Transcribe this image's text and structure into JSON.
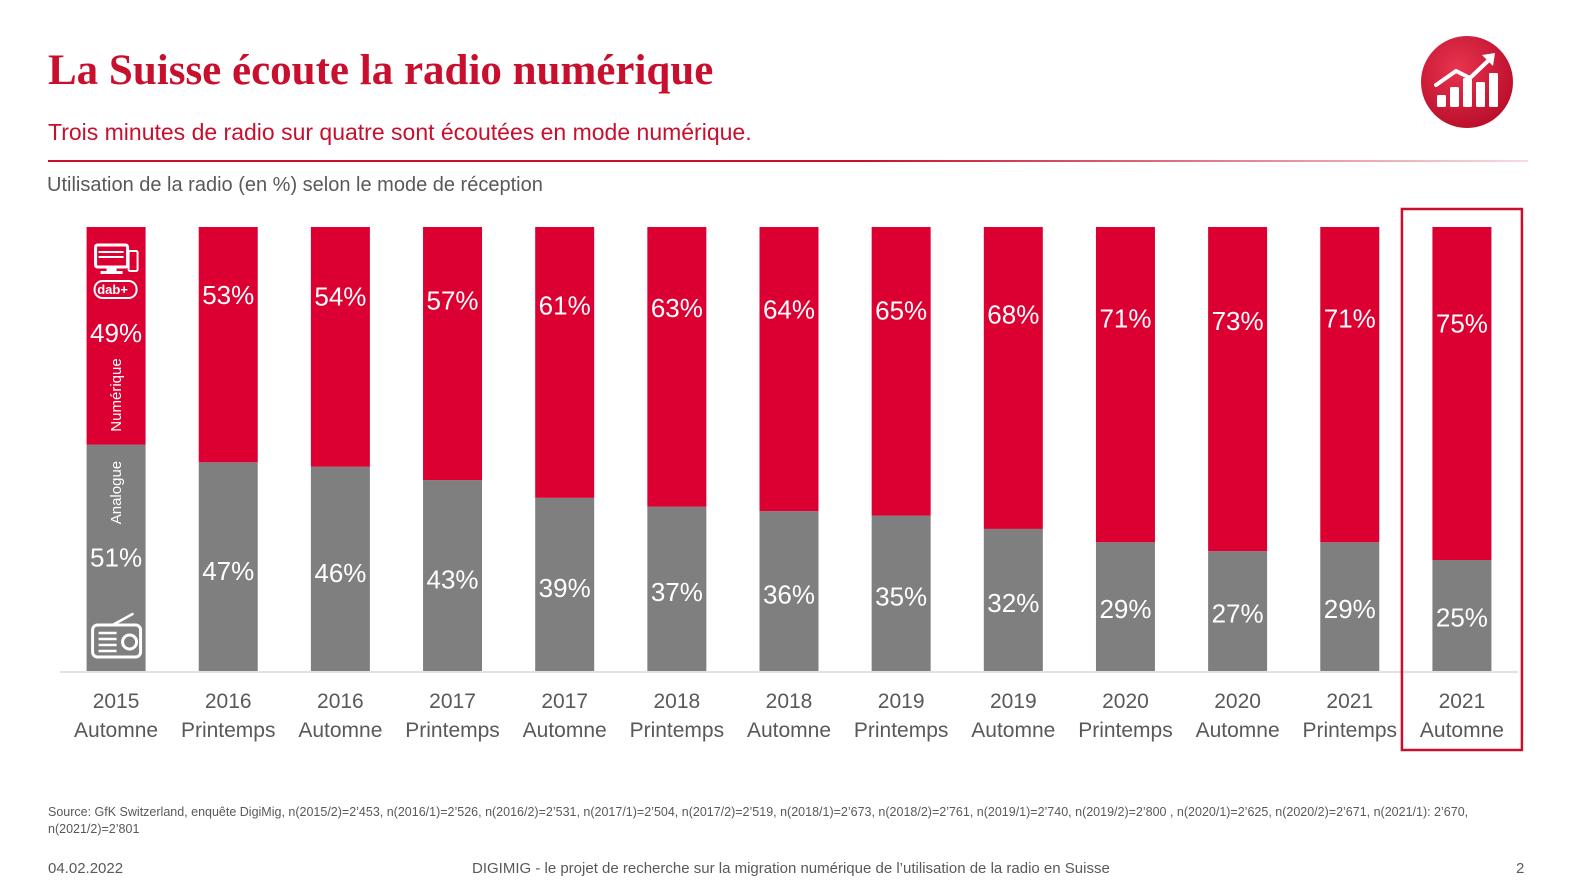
{
  "header": {
    "title": "La Suisse écoute la radio numérique",
    "subtitle": "Trois minutes de radio sur quatre sont écoutées en mode numérique."
  },
  "logo": {
    "icon": "rising-bar-chart-icon",
    "color": "#c8102e"
  },
  "chart_data": {
    "type": "bar",
    "stacked": true,
    "title": "Utilisation de la radio (en %) selon le mode de réception",
    "categories": [
      [
        "2015",
        "Automne"
      ],
      [
        "2016",
        "Printemps"
      ],
      [
        "2016",
        "Automne"
      ],
      [
        "2017",
        "Printemps"
      ],
      [
        "2017",
        "Automne"
      ],
      [
        "2018",
        "Printemps"
      ],
      [
        "2018",
        "Automne"
      ],
      [
        "2019",
        "Printemps"
      ],
      [
        "2019",
        "Automne"
      ],
      [
        "2020",
        "Printemps"
      ],
      [
        "2020",
        "Automne"
      ],
      [
        "2021",
        "Printemps"
      ],
      [
        "2021",
        "Automne"
      ]
    ],
    "series": [
      {
        "name": "Analogue",
        "color": "#7f7f7f",
        "values": [
          51,
          47,
          46,
          43,
          39,
          37,
          36,
          35,
          32,
          29,
          27,
          29,
          25
        ],
        "labels": [
          "51%",
          "47%",
          "46%",
          "43%",
          "39%",
          "37%",
          "36%",
          "35%",
          "32%",
          "29%",
          "27%",
          "29%",
          "25%"
        ],
        "icon": "radio-icon"
      },
      {
        "name": "Numérique",
        "color": "#dc0032",
        "values": [
          49,
          53,
          54,
          57,
          61,
          63,
          64,
          65,
          68,
          71,
          73,
          71,
          75
        ],
        "labels": [
          "49%",
          "53%",
          "54%",
          "57%",
          "61%",
          "63%",
          "64%",
          "65%",
          "68%",
          "71%",
          "73%",
          "71%",
          "75%"
        ],
        "icon": "computer-dab-plus-icon"
      }
    ],
    "ylim": [
      0,
      100
    ],
    "grid": false,
    "legend": "inside first bar",
    "highlight_category": "2021 Automne",
    "highlight_color": "#c8102e",
    "dab_label": "dab+"
  },
  "source": "Source: GfK Switzerland,  enquête DigiMig,  n(2015/2)=2’453, n(2016/1)=2’526, n(2016/2)=2’531, n(2017/1)=2’504, n(2017/2)=2’519, n(2018/1)=2’673, n(2018/2)=2’761, n(2019/1)=2’740, n(2019/2)=2’800 , n(2020/1)=2’625, n(2020/2)=2’671, n(2021/1): 2’670, n(2021/2)=2’801",
  "footer": {
    "date": "04.02.2022",
    "center": "DIGIMIG - le projet de recherche sur la migration numérique de l’utilisation de la radio en Suisse",
    "page": "2"
  }
}
